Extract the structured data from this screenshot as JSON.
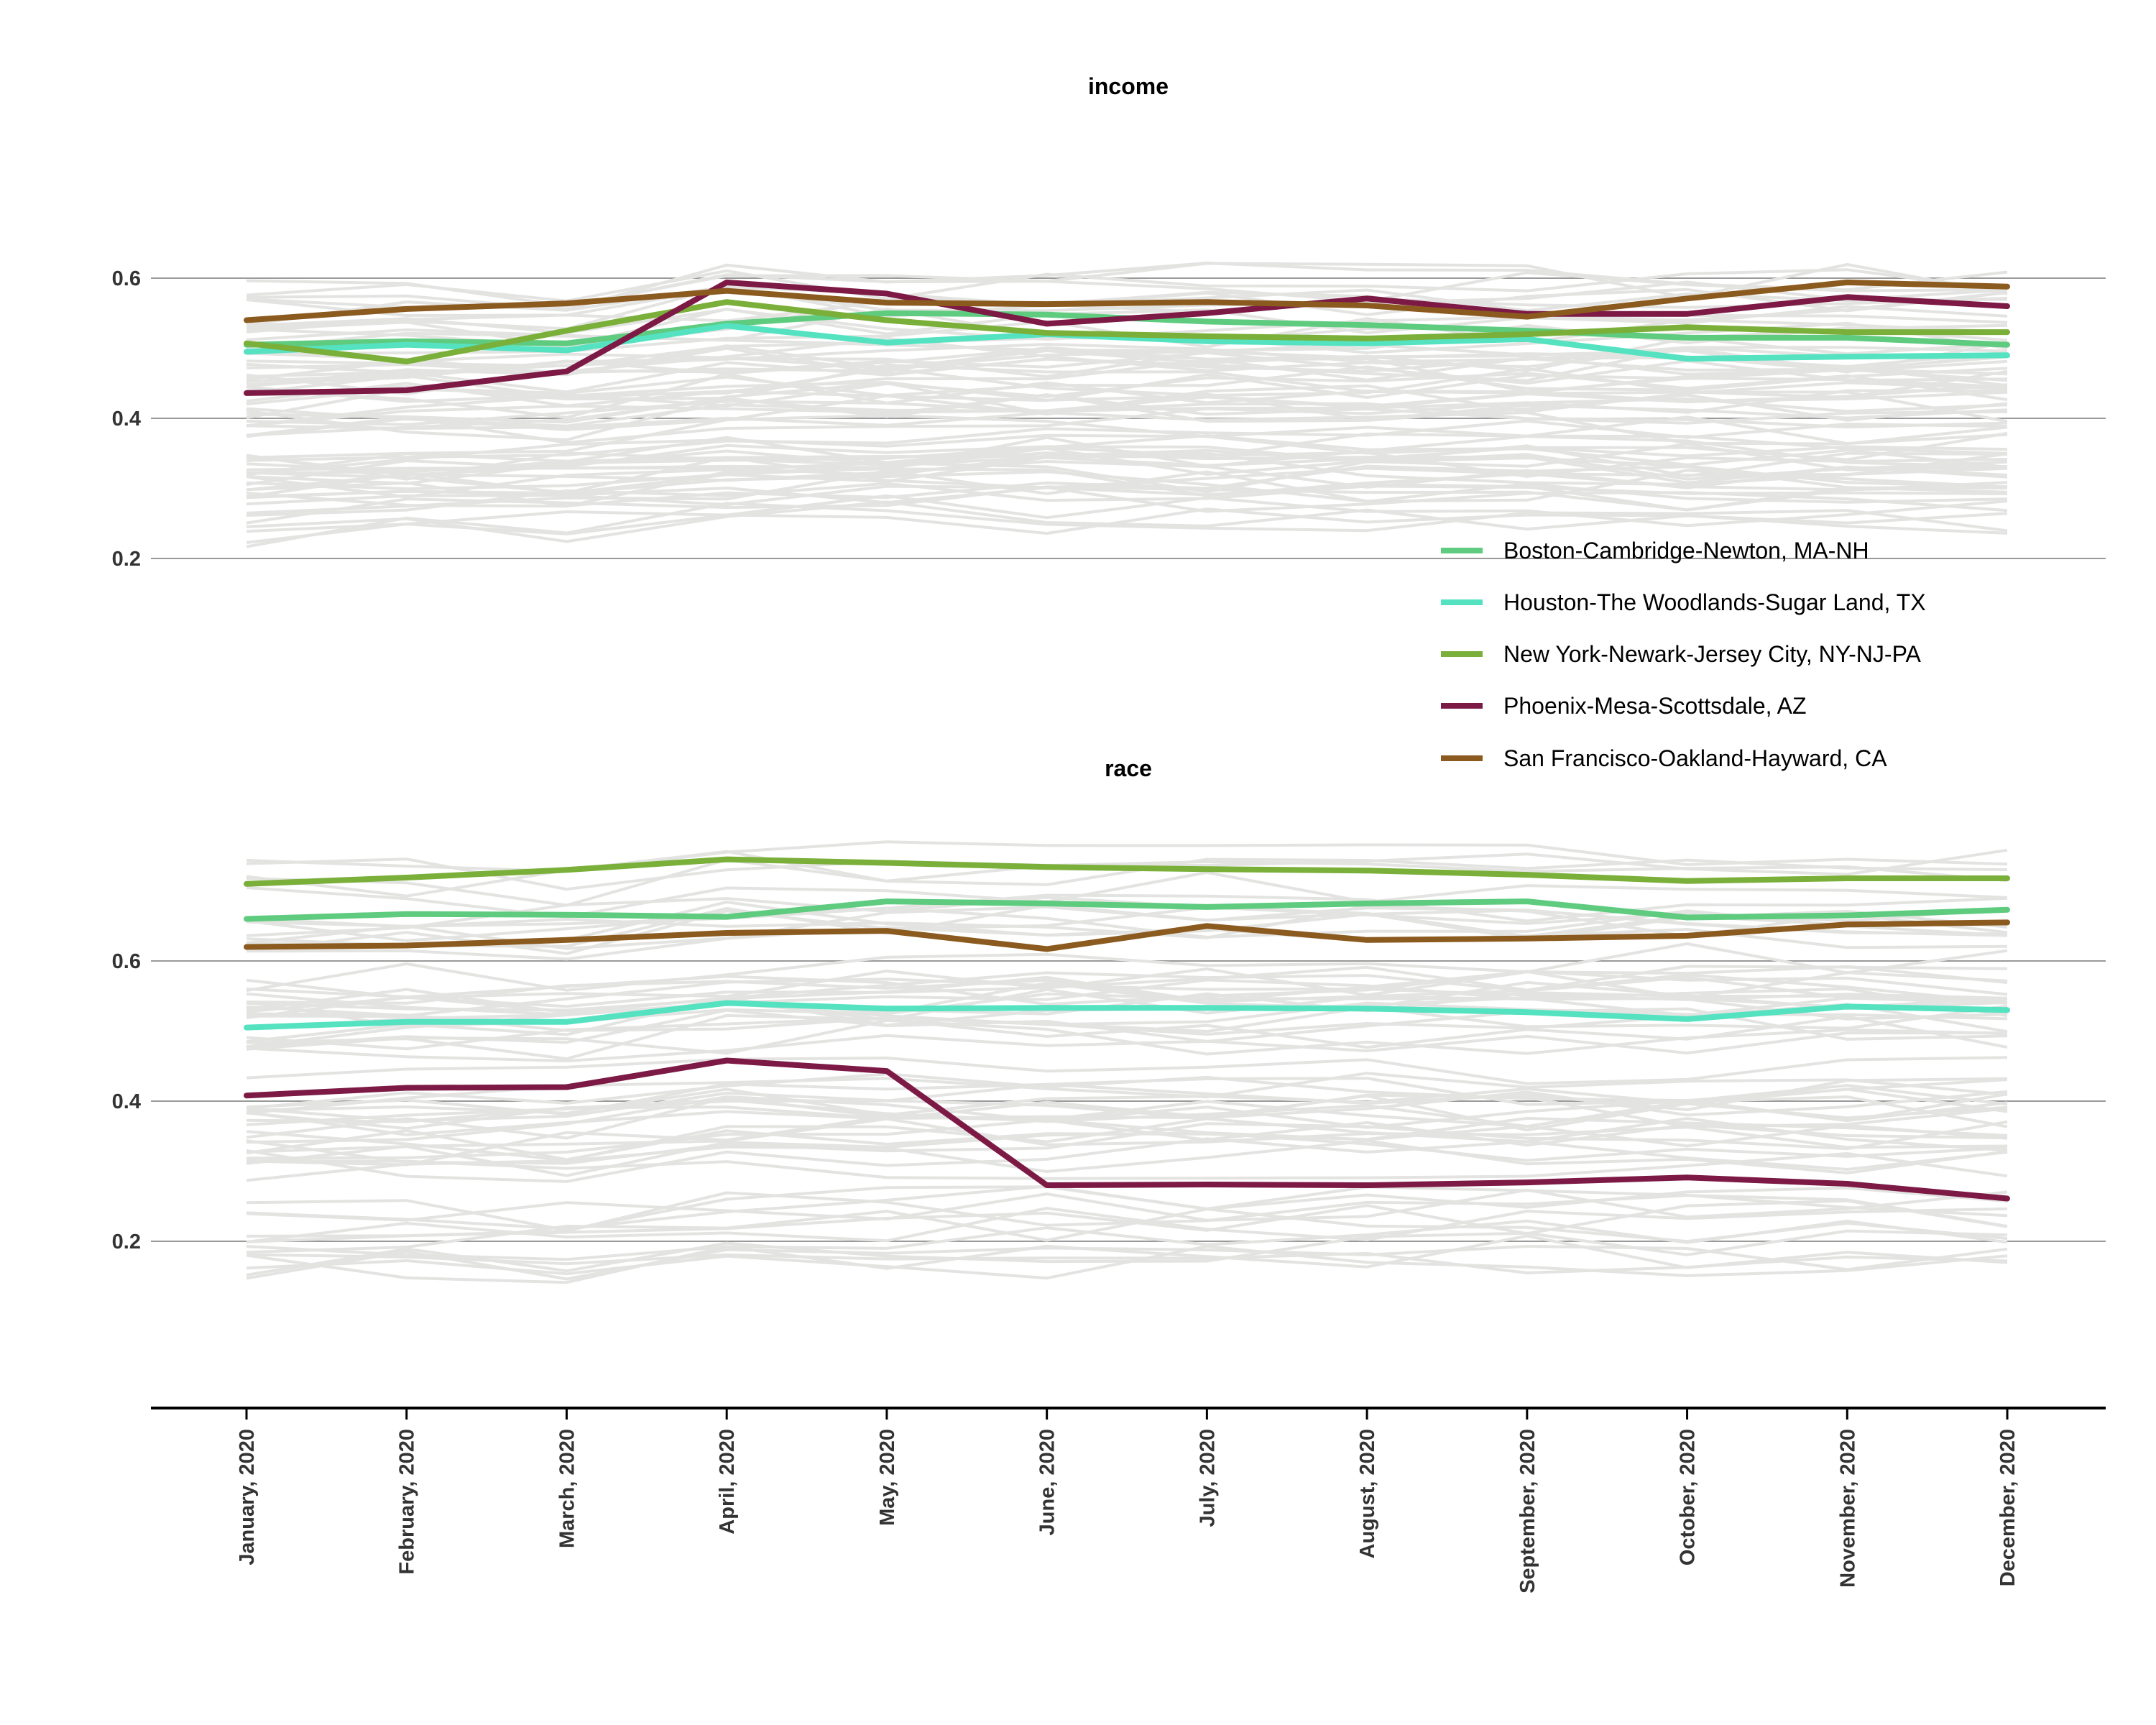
{
  "chart_data": [
    {
      "type": "line",
      "title": "income",
      "xlabel": "",
      "ylabel": "",
      "x": [
        "January, 2020",
        "February, 2020",
        "March, 2020",
        "April, 2020",
        "May, 2020",
        "June, 2020",
        "July, 2020",
        "August, 2020",
        "September, 2020",
        "October, 2020",
        "November, 2020",
        "December, 2020"
      ],
      "yticks": [
        0.2,
        0.4,
        0.6
      ],
      "ylim": [
        0.0,
        0.82
      ],
      "grid": "horizontal",
      "background_lines_color": "#e3e3e1",
      "series": [
        {
          "name": "Boston-Cambridge-Newton, MA-NH",
          "color": "#5ecb7f",
          "values": [
            0.505,
            0.51,
            0.507,
            0.535,
            0.55,
            0.548,
            0.538,
            0.533,
            0.525,
            0.515,
            0.515,
            0.505
          ]
        },
        {
          "name": "Houston-The Woodlands-Sugar Land, TX",
          "color": "#55e2c1",
          "values": [
            0.495,
            0.505,
            0.497,
            0.532,
            0.508,
            0.52,
            0.51,
            0.507,
            0.513,
            0.485,
            0.488,
            0.49
          ]
        },
        {
          "name": "New York-Newark-Jersey City, NY-NJ-PA",
          "color": "#7aaf3a",
          "values": [
            0.507,
            0.481,
            0.525,
            0.566,
            0.54,
            0.522,
            0.517,
            0.514,
            0.52,
            0.53,
            0.523,
            0.523
          ]
        },
        {
          "name": "Phoenix-Mesa-Scottsdale, AZ",
          "color": "#7c1a45",
          "values": [
            0.436,
            0.44,
            0.467,
            0.594,
            0.578,
            0.535,
            0.55,
            0.571,
            0.549,
            0.549,
            0.573,
            0.56
          ]
        },
        {
          "name": "San Francisco-Oakland-Hayward, CA",
          "color": "#8b5a1e",
          "values": [
            0.54,
            0.556,
            0.564,
            0.582,
            0.565,
            0.563,
            0.566,
            0.561,
            0.545,
            0.571,
            0.594,
            0.588
          ]
        }
      ]
    },
    {
      "type": "line",
      "title": "race",
      "xlabel": "",
      "ylabel": "",
      "x": [
        "January, 2020",
        "February, 2020",
        "March, 2020",
        "April, 2020",
        "May, 2020",
        "June, 2020",
        "July, 2020",
        "August, 2020",
        "September, 2020",
        "October, 2020",
        "November, 2020",
        "December, 2020"
      ],
      "yticks": [
        0.2,
        0.4,
        0.6
      ],
      "ylim": [
        0.0,
        0.8
      ],
      "grid": "horizontal",
      "background_lines_color": "#e3e3e1",
      "series": [
        {
          "name": "Boston-Cambridge-Newton, MA-NH",
          "color": "#5ecb7f",
          "values": [
            0.66,
            0.667,
            0.666,
            0.663,
            0.685,
            0.682,
            0.677,
            0.682,
            0.685,
            0.662,
            0.665,
            0.673
          ]
        },
        {
          "name": "Houston-The Woodlands-Sugar Land, TX",
          "color": "#55e2c1",
          "values": [
            0.505,
            0.513,
            0.513,
            0.54,
            0.532,
            0.533,
            0.533,
            0.532,
            0.527,
            0.517,
            0.535,
            0.53
          ]
        },
        {
          "name": "New York-Newark-Jersey City, NY-NJ-PA",
          "color": "#7aaf3a",
          "values": [
            0.71,
            0.719,
            0.73,
            0.745,
            0.74,
            0.734,
            0.731,
            0.729,
            0.723,
            0.714,
            0.718,
            0.718
          ]
        },
        {
          "name": "Phoenix-Mesa-Scottsdale, AZ",
          "color": "#7c1a45",
          "values": [
            0.408,
            0.419,
            0.42,
            0.458,
            0.443,
            0.28,
            0.281,
            0.28,
            0.284,
            0.291,
            0.282,
            0.261
          ]
        },
        {
          "name": "San Francisco-Oakland-Hayward, CA",
          "color": "#8b5a1e",
          "values": [
            0.62,
            0.622,
            0.63,
            0.64,
            0.643,
            0.617,
            0.65,
            0.63,
            0.632,
            0.636,
            0.652,
            0.655
          ]
        }
      ]
    }
  ],
  "legend": {
    "placement": "right-middle",
    "items": [
      {
        "label": "Boston-Cambridge-Newton, MA-NH",
        "color": "#5ecb7f"
      },
      {
        "label": "Houston-The Woodlands-Sugar Land, TX",
        "color": "#55e2c1"
      },
      {
        "label": "New York-Newark-Jersey City, NY-NJ-PA",
        "color": "#7aaf3a"
      },
      {
        "label": "Phoenix-Mesa-Scottsdale, AZ",
        "color": "#7c1a45"
      },
      {
        "label": "San Francisco-Oakland-Hayward, CA",
        "color": "#8b5a1e"
      }
    ]
  }
}
